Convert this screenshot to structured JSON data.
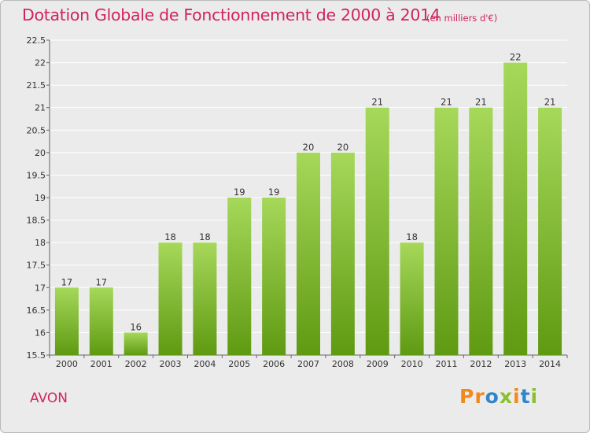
{
  "title": "Dotation Globale de Fonctionnement de 2000 à 2014",
  "subtitle": "(en milliers d'€)",
  "commune": "AVON",
  "logo": {
    "text": "Proxiti",
    "letters": [
      "P",
      "r",
      "o",
      "x",
      "i",
      "t",
      "i"
    ],
    "colors": [
      "#f08a1d",
      "#f08a1d",
      "#2f86c8",
      "#8bbf2f",
      "#f08a1d",
      "#2f86c8",
      "#8bbf2f"
    ]
  },
  "colors": {
    "title": "#d0235f",
    "bar_light": "#9fd24f",
    "bar_dark": "#5f9a12",
    "background": "#ebebeb"
  },
  "chart_data": {
    "type": "bar",
    "title": "Dotation Globale de Fonctionnement de 2000 à 2014",
    "subtitle": "(en milliers d'€)",
    "xlabel": "",
    "ylabel": "",
    "categories": [
      "2000",
      "2001",
      "2002",
      "2003",
      "2004",
      "2005",
      "2006",
      "2007",
      "2008",
      "2009",
      "2010",
      "2011",
      "2012",
      "2013",
      "2014"
    ],
    "values": [
      17,
      17,
      16,
      18,
      18,
      19,
      19,
      20,
      20,
      21,
      18,
      21,
      21,
      22,
      21
    ],
    "value_labels": [
      "17",
      "17",
      "16",
      "18",
      "18",
      "19",
      "19",
      "20",
      "20",
      "21",
      "18",
      "21",
      "21",
      "22",
      "21"
    ],
    "ylim": [
      15.5,
      22.5
    ],
    "yticks": [
      15.5,
      16,
      16.5,
      17,
      17.5,
      18,
      18.5,
      19,
      19.5,
      20,
      20.5,
      21,
      21.5,
      22,
      22.5
    ],
    "grid": true,
    "legend": "none"
  }
}
